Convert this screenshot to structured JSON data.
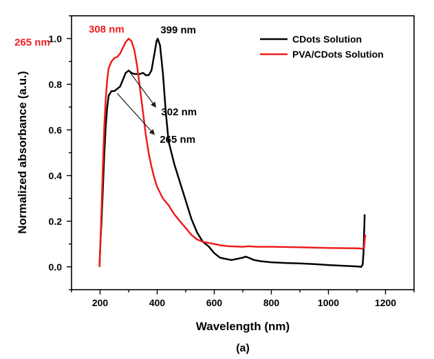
{
  "chart_data": {
    "type": "line",
    "xlabel": "Wavelength (nm)",
    "ylabel": "Normalized absorbance (a.u.)",
    "caption": "(a)",
    "xlim": [
      100,
      1300
    ],
    "ylim": [
      -0.1,
      1.1
    ],
    "x_ticks": [
      200,
      400,
      600,
      800,
      1000,
      1200
    ],
    "y_ticks": [
      0.0,
      0.2,
      0.4,
      0.6,
      0.8,
      1.0
    ],
    "y_tick_labels": [
      "0.0",
      "0.2",
      "0.4",
      "0.6",
      "0.8",
      "1.0"
    ],
    "grid": false,
    "legend": "top-right",
    "series": [
      {
        "name": "CDots Solution",
        "color": "#000000",
        "points": [
          [
            198,
            0.0
          ],
          [
            201,
            0.1
          ],
          [
            205,
            0.2
          ],
          [
            210,
            0.35
          ],
          [
            215,
            0.5
          ],
          [
            220,
            0.62
          ],
          [
            225,
            0.7
          ],
          [
            230,
            0.75
          ],
          [
            240,
            0.77
          ],
          [
            250,
            0.77
          ],
          [
            260,
            0.78
          ],
          [
            270,
            0.79
          ],
          [
            280,
            0.82
          ],
          [
            290,
            0.85
          ],
          [
            300,
            0.86
          ],
          [
            310,
            0.85
          ],
          [
            320,
            0.845
          ],
          [
            340,
            0.845
          ],
          [
            350,
            0.85
          ],
          [
            360,
            0.84
          ],
          [
            370,
            0.84
          ],
          [
            380,
            0.86
          ],
          [
            390,
            0.93
          ],
          [
            398,
            0.99
          ],
          [
            402,
            1.0
          ],
          [
            410,
            0.97
          ],
          [
            420,
            0.85
          ],
          [
            430,
            0.68
          ],
          [
            440,
            0.55
          ],
          [
            460,
            0.45
          ],
          [
            480,
            0.37
          ],
          [
            500,
            0.29
          ],
          [
            520,
            0.21
          ],
          [
            540,
            0.15
          ],
          [
            560,
            0.11
          ],
          [
            580,
            0.09
          ],
          [
            600,
            0.06
          ],
          [
            620,
            0.04
          ],
          [
            640,
            0.035
          ],
          [
            660,
            0.03
          ],
          [
            680,
            0.035
          ],
          [
            700,
            0.04
          ],
          [
            710,
            0.045
          ],
          [
            720,
            0.04
          ],
          [
            740,
            0.03
          ],
          [
            760,
            0.025
          ],
          [
            800,
            0.02
          ],
          [
            850,
            0.017
          ],
          [
            900,
            0.015
          ],
          [
            950,
            0.012
          ],
          [
            1000,
            0.008
          ],
          [
            1050,
            0.005
          ],
          [
            1100,
            0.002
          ],
          [
            1115,
            0.0
          ],
          [
            1120,
            0.01
          ],
          [
            1123,
            0.06
          ],
          [
            1125,
            0.15
          ],
          [
            1127,
            0.23
          ]
        ]
      },
      {
        "name": "PVA/CDots Solution",
        "color": "#ee1c1c",
        "points": [
          [
            198,
            0.0
          ],
          [
            201,
            0.1
          ],
          [
            205,
            0.25
          ],
          [
            210,
            0.45
          ],
          [
            215,
            0.62
          ],
          [
            220,
            0.74
          ],
          [
            225,
            0.82
          ],
          [
            230,
            0.87
          ],
          [
            240,
            0.9
          ],
          [
            250,
            0.915
          ],
          [
            260,
            0.92
          ],
          [
            270,
            0.935
          ],
          [
            280,
            0.96
          ],
          [
            290,
            0.985
          ],
          [
            300,
            1.0
          ],
          [
            310,
            0.99
          ],
          [
            320,
            0.95
          ],
          [
            330,
            0.88
          ],
          [
            340,
            0.78
          ],
          [
            350,
            0.68
          ],
          [
            360,
            0.58
          ],
          [
            370,
            0.5
          ],
          [
            380,
            0.44
          ],
          [
            390,
            0.39
          ],
          [
            400,
            0.35
          ],
          [
            420,
            0.3
          ],
          [
            440,
            0.27
          ],
          [
            460,
            0.23
          ],
          [
            480,
            0.2
          ],
          [
            500,
            0.17
          ],
          [
            520,
            0.14
          ],
          [
            540,
            0.12
          ],
          [
            560,
            0.11
          ],
          [
            580,
            0.105
          ],
          [
            600,
            0.1
          ],
          [
            620,
            0.095
          ],
          [
            650,
            0.09
          ],
          [
            700,
            0.088
          ],
          [
            720,
            0.09
          ],
          [
            750,
            0.088
          ],
          [
            800,
            0.088
          ],
          [
            900,
            0.086
          ],
          [
            1000,
            0.083
          ],
          [
            1100,
            0.081
          ],
          [
            1120,
            0.08
          ],
          [
            1125,
            0.085
          ],
          [
            1128,
            0.13
          ],
          [
            1130,
            0.14
          ]
        ]
      }
    ],
    "annotations": [
      {
        "text": "308 nm",
        "color": "#ee1c1c",
        "x": 300,
        "y": 1.0
      },
      {
        "text": "265 nm",
        "color": "#ee1c1c",
        "x": 252,
        "y": 0.915
      },
      {
        "text": "399 nm",
        "color": "#000000",
        "x": 402,
        "y": 1.0
      },
      {
        "text": "302 nm",
        "color": "#000000",
        "x": 300,
        "y": 0.86,
        "arrow_to": [
          395,
          0.7
        ]
      },
      {
        "text": "265 nm",
        "color": "#000000",
        "x": 260,
        "y": 0.76,
        "arrow_to": [
          390,
          0.58
        ]
      }
    ]
  }
}
